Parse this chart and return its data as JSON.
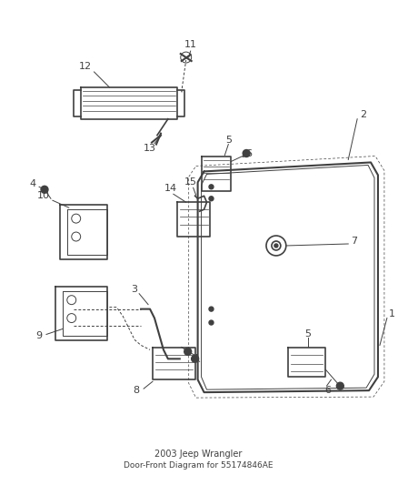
{
  "background_color": "#ffffff",
  "line_color": "#404040",
  "label_color": "#000000",
  "figsize": [
    4.38,
    5.33
  ],
  "dpi": 100
}
